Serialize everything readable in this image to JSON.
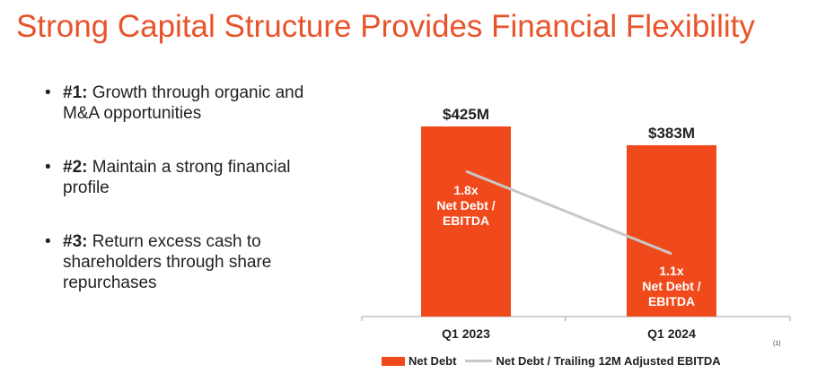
{
  "page": {
    "title": "Strong Capital Structure Provides Financial Flexibility",
    "footnote": "(1)",
    "bullets": [
      {
        "number": "#1:",
        "text": "Growth through organic and M&A opportunities"
      },
      {
        "number": "#2:",
        "text": "Maintain a strong financial profile"
      },
      {
        "number": "#3:",
        "text": "Return excess cash to shareholders through share repurchases"
      }
    ]
  },
  "colors": {
    "accent": "#e8532a",
    "bar": "#f04a1c",
    "line": "#c8c8c8",
    "axis": "#a0a0a0"
  },
  "chart_data": {
    "type": "bar",
    "categories": [
      "Q1 2023",
      "Q1 2024"
    ],
    "series": [
      {
        "name": "Net Debt",
        "type": "bar",
        "values": [
          425,
          383
        ],
        "labels": [
          "$425M",
          "$383M"
        ],
        "unit": "$M"
      },
      {
        "name": "Net Debt / Trailing 12M Adjusted EBITDA",
        "type": "line",
        "values": [
          1.8,
          1.1
        ],
        "labels": [
          "1.8x Net Debt / EBITDA",
          "1.1x Net Debt / EBITDA"
        ],
        "unit": "x"
      }
    ],
    "legend_position": "bottom",
    "grid": false
  }
}
